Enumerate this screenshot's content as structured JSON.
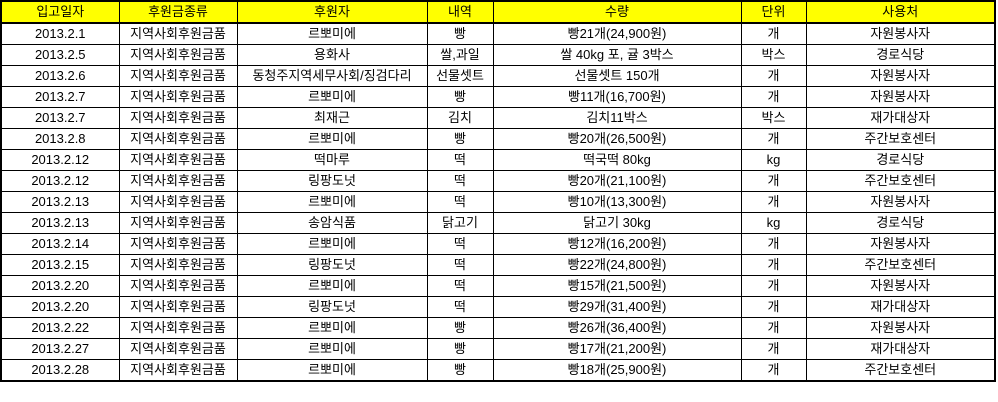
{
  "colors": {
    "header_bg": "#FFFF00",
    "border": "#000000",
    "text": "#000000",
    "row_bg": "#FFFFFF"
  },
  "table": {
    "columns": [
      "입고일자",
      "후원금종류",
      "후원자",
      "내역",
      "수량",
      "단위",
      "사용처"
    ],
    "rows": [
      [
        "2013.2.1",
        "지역사회후원금품",
        "르뽀미에",
        "빵",
        "빵21개(24,900원)",
        "개",
        "자원봉사자"
      ],
      [
        "2013.2.5",
        "지역사회후원금품",
        "용화사",
        "쌀,과일",
        "쌀 40kg 포, 귤 3박스",
        "박스",
        "경로식당"
      ],
      [
        "2013.2.6",
        "지역사회후원금품",
        "동청주지역세무사회/징검다리",
        "선물셋트",
        "선물셋트 150개",
        "개",
        "자원봉사자"
      ],
      [
        "2013.2.7",
        "지역사회후원금품",
        "르뽀미에",
        "빵",
        "빵11개(16,700원)",
        "개",
        "자원봉사자"
      ],
      [
        "2013.2.7",
        "지역사회후원금품",
        "최재근",
        "김치",
        "김치11박스",
        "박스",
        "재가대상자"
      ],
      [
        "2013.2.8",
        "지역사회후원금품",
        "르뽀미에",
        "빵",
        "빵20개(26,500원)",
        "개",
        "주간보호센터"
      ],
      [
        "2013.2.12",
        "지역사회후원금품",
        "떡마루",
        "떡",
        "떡국떡 80kg",
        "kg",
        "경로식당"
      ],
      [
        "2013.2.12",
        "지역사회후원금품",
        "링팡도넛",
        "떡",
        "빵20개(21,100원)",
        "개",
        "주간보호센터"
      ],
      [
        "2013.2.13",
        "지역사회후원금품",
        "르뽀미에",
        "떡",
        "빵10개(13,300원)",
        "개",
        "자원봉사자"
      ],
      [
        "2013.2.13",
        "지역사회후원금품",
        "송암식품",
        "닭고기",
        "닭고기 30kg",
        "kg",
        "경로식당"
      ],
      [
        "2013.2.14",
        "지역사회후원금품",
        "르뽀미에",
        "떡",
        "빵12개(16,200원)",
        "개",
        "자원봉사자"
      ],
      [
        "2013.2.15",
        "지역사회후원금품",
        "링팡도넛",
        "떡",
        "빵22개(24,800원)",
        "개",
        "주간보호센터"
      ],
      [
        "2013.2.20",
        "지역사회후원금품",
        "르뽀미에",
        "떡",
        "빵15개(21,500원)",
        "개",
        "자원봉사자"
      ],
      [
        "2013.2.20",
        "지역사회후원금품",
        "링팡도넛",
        "떡",
        "빵29개(31,400원)",
        "개",
        "재가대상자"
      ],
      [
        "2013.2.22",
        "지역사회후원금품",
        "르뽀미에",
        "빵",
        "빵26개(36,400원)",
        "개",
        "자원봉사자"
      ],
      [
        "2013.2.27",
        "지역사회후원금품",
        "르뽀미에",
        "빵",
        "빵17개(21,200원)",
        "개",
        "재가대상자"
      ],
      [
        "2013.2.28",
        "지역사회후원금품",
        "르뽀미에",
        "빵",
        "빵18개(25,900원)",
        "개",
        "주간보호센터"
      ]
    ]
  }
}
